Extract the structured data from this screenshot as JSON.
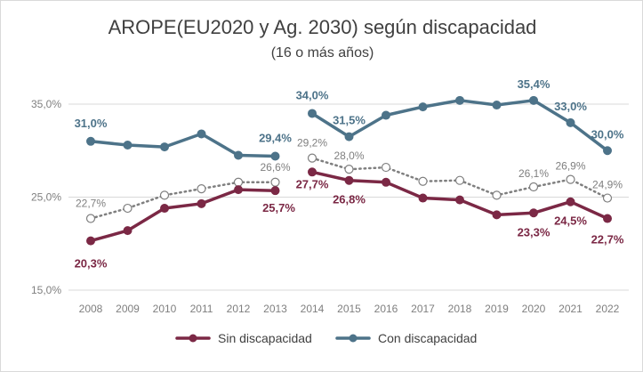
{
  "chart_data": {
    "type": "line",
    "title": "AROPE(EU2020 y Ag. 2030) según discapacidad",
    "subtitle": "(16 o más años)",
    "x": [
      "2008",
      "2009",
      "2010",
      "2011",
      "2012",
      "2013",
      "2014",
      "2015",
      "2016",
      "2017",
      "2018",
      "2019",
      "2020",
      "2021",
      "2022"
    ],
    "ylim": [
      15,
      35
    ],
    "yticks": [
      "15,0%",
      "25,0%",
      "35,0%"
    ],
    "grid": true,
    "legend_position": "bottom",
    "break_after": "2013",
    "series": [
      {
        "name": "Sin discapacidad",
        "color": "#7b2845",
        "values": [
          20.3,
          21.4,
          23.8,
          24.3,
          25.8,
          25.7,
          27.7,
          26.8,
          26.6,
          24.9,
          24.7,
          23.1,
          23.3,
          24.5,
          22.7
        ],
        "labels": [
          "20,3%",
          null,
          null,
          null,
          null,
          "25,7%",
          "27,7%",
          "26,8%",
          null,
          null,
          null,
          null,
          "23,3%",
          "24,5%",
          "22,7%"
        ]
      },
      {
        "name": "Con discapacidad",
        "color": "#4d7389",
        "values": [
          31.0,
          30.6,
          30.4,
          31.8,
          29.5,
          29.4,
          34.0,
          31.5,
          33.8,
          34.7,
          35.4,
          34.9,
          35.4,
          33.0,
          30.0
        ],
        "labels": [
          "31,0%",
          null,
          null,
          null,
          null,
          "29,4%",
          "34,0%",
          "31,5%",
          null,
          null,
          null,
          null,
          "35,4%",
          "33,0%",
          "30,0%"
        ]
      },
      {
        "name": "",
        "color": "#7f7f7f",
        "dashed": true,
        "values": [
          22.7,
          23.8,
          25.2,
          25.9,
          26.6,
          26.6,
          29.2,
          28.0,
          28.2,
          26.7,
          26.8,
          25.2,
          26.1,
          26.9,
          24.9
        ],
        "labels": [
          "22,7%",
          null,
          null,
          null,
          null,
          "26,6%",
          "29,2%",
          "28,0%",
          null,
          null,
          null,
          null,
          "26,1%",
          "26,9%",
          "24,9%"
        ]
      }
    ]
  }
}
